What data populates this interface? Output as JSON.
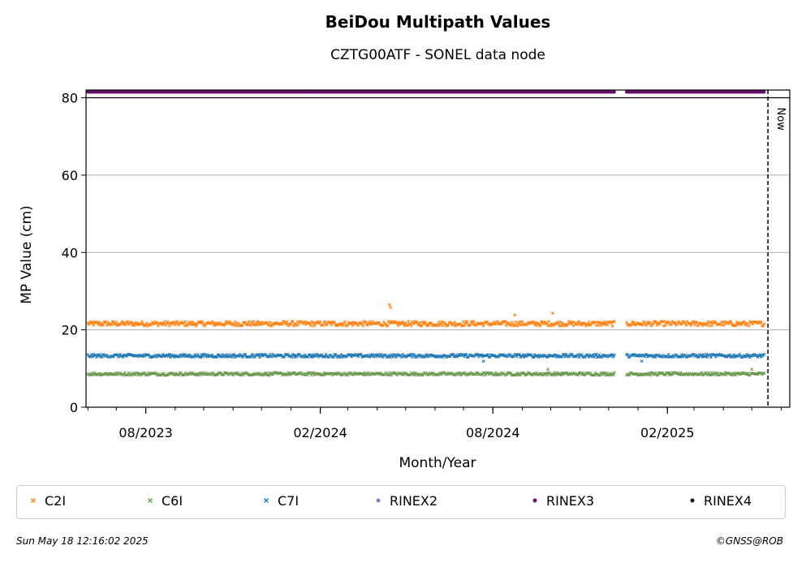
{
  "chart_data": {
    "type": "scatter",
    "title": "BeiDou Multipath Values",
    "subtitle": "CZTG00ATF - SONEL data node",
    "xlabel": "Month/Year",
    "ylabel": "MP Value (cm)",
    "xlim": [
      "2023-05-30",
      "2025-06-10"
    ],
    "ylim": [
      0,
      82
    ],
    "yticks": [
      0,
      20,
      40,
      60,
      80
    ],
    "xticks": [
      {
        "date": "2023-08-01",
        "label": "08/2023"
      },
      {
        "date": "2024-02-01",
        "label": "02/2024"
      },
      {
        "date": "2024-08-01",
        "label": "08/2024"
      },
      {
        "date": "2025-02-01",
        "label": "02/2025"
      }
    ],
    "grid": "y",
    "now_line": {
      "date": "2025-05-18",
      "label": "Now"
    },
    "series": [
      {
        "name": "C2I",
        "color": "#ff7f0e",
        "marker": "x",
        "start": "2023-06-01",
        "end": "2025-05-14",
        "gap": [
          "2024-12-07",
          "2024-12-20"
        ],
        "baseline": 21.6,
        "spread": 0.6,
        "outliers": [
          {
            "date": "2024-04-14",
            "value": 26.5
          },
          {
            "date": "2024-04-15",
            "value": 25.8
          },
          {
            "date": "2024-08-24",
            "value": 23.8
          },
          {
            "date": "2024-10-03",
            "value": 24.3
          }
        ]
      },
      {
        "name": "C6I",
        "color": "#6a994e",
        "marker": "x",
        "start": "2023-06-01",
        "end": "2025-05-14",
        "gap": [
          "2024-12-07",
          "2024-12-20"
        ],
        "baseline": 8.6,
        "spread": 0.35,
        "outliers": [
          {
            "date": "2024-09-28",
            "value": 9.8
          },
          {
            "date": "2025-05-01",
            "value": 9.8
          }
        ]
      },
      {
        "name": "C7I",
        "color": "#1f77b4",
        "marker": "x",
        "start": "2023-06-01",
        "end": "2025-05-14",
        "gap": [
          "2024-12-07",
          "2024-12-20"
        ],
        "baseline": 13.3,
        "spread": 0.4,
        "outliers": [
          {
            "date": "2024-07-22",
            "value": 11.9
          },
          {
            "date": "2025-01-05",
            "value": 11.9
          }
        ]
      },
      {
        "name": "RINEX2",
        "color": "#8c80c0",
        "marker": "dot",
        "values": []
      },
      {
        "name": "RINEX3",
        "color": "#6a0f6e",
        "marker": "dot",
        "start": "2023-06-01",
        "end": "2025-05-14",
        "gap": [
          "2024-12-07",
          "2024-12-20"
        ],
        "value": 81.5
      },
      {
        "name": "RINEX4",
        "color": "#1a0a24",
        "marker": "dot",
        "values": []
      }
    ]
  },
  "footer": {
    "timestamp": "Sun May 18 12:16:02 2025",
    "copyright": "©GNSS@ROB"
  }
}
